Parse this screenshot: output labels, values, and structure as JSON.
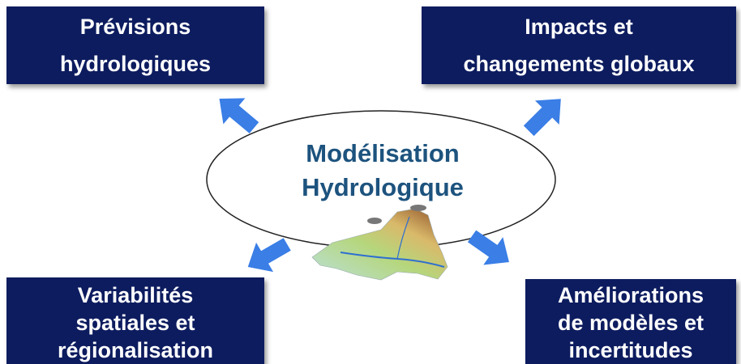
{
  "center": {
    "lines": [
      "Modélisation",
      "Hydrologique"
    ]
  },
  "nodes": [
    {
      "lines": [
        "Prévisions",
        "hydrologiques"
      ]
    },
    {
      "lines": [
        "Impacts et",
        "changements globaux"
      ]
    },
    {
      "lines": [
        "Variabilités",
        "spatiales et",
        "régionalisation"
      ]
    },
    {
      "lines": [
        "Améliorations",
        "de modèles et",
        "incertitudes"
      ]
    }
  ]
}
